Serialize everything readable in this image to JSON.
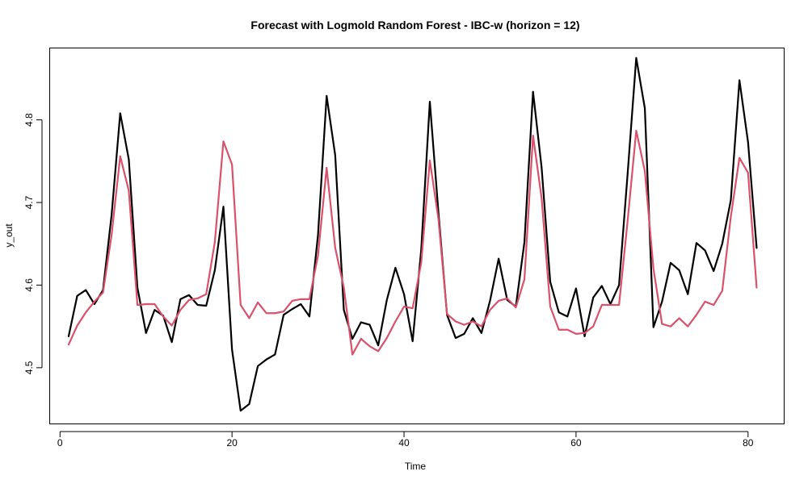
{
  "chart_data": {
    "type": "line",
    "title": "Forecast with Logmold Random Forest - IBC-w (horizon = 12)",
    "xlabel": "Time",
    "ylabel": "y_out",
    "xlim": [
      -1.2,
      84.2
    ],
    "ylim": [
      4.432,
      4.887
    ],
    "x_ticks": [
      0,
      20,
      40,
      60,
      80
    ],
    "y_ticks": [
      4.5,
      4.6,
      4.7,
      4.8
    ],
    "grid": false,
    "legend": "none",
    "x": [
      1,
      2,
      3,
      4,
      5,
      6,
      7,
      8,
      9,
      10,
      11,
      12,
      13,
      14,
      15,
      16,
      17,
      18,
      19,
      20,
      21,
      22,
      23,
      24,
      25,
      26,
      27,
      28,
      29,
      30,
      31,
      32,
      33,
      34,
      35,
      36,
      37,
      38,
      39,
      40,
      41,
      42,
      43,
      44,
      45,
      46,
      47,
      48,
      49,
      50,
      51,
      52,
      53,
      54,
      55,
      56,
      57,
      58,
      59,
      60,
      61,
      62,
      63,
      64,
      65,
      66,
      67,
      68,
      69,
      70,
      71,
      72,
      73,
      74,
      75,
      76,
      77,
      78,
      79,
      80,
      81
    ],
    "series": [
      {
        "color": "#000000",
        "values": [
          4.538,
          4.587,
          4.594,
          4.577,
          4.594,
          4.685,
          4.808,
          4.752,
          4.597,
          4.542,
          4.57,
          4.563,
          4.531,
          4.583,
          4.588,
          4.576,
          4.575,
          4.618,
          4.695,
          4.522,
          4.448,
          4.456,
          4.502,
          4.51,
          4.516,
          4.564,
          4.571,
          4.577,
          4.562,
          4.661,
          4.829,
          4.757,
          4.57,
          4.535,
          4.555,
          4.552,
          4.527,
          4.582,
          4.621,
          4.589,
          4.532,
          4.643,
          4.822,
          4.688,
          4.564,
          4.536,
          4.541,
          4.56,
          4.542,
          4.581,
          4.632,
          4.582,
          4.574,
          4.652,
          4.834,
          4.742,
          4.604,
          4.567,
          4.562,
          4.596,
          4.538,
          4.585,
          4.599,
          4.577,
          4.6,
          4.735,
          4.875,
          4.814,
          4.549,
          4.58,
          4.627,
          4.618,
          4.589,
          4.651,
          4.642,
          4.617,
          4.65,
          4.703,
          4.848,
          4.773,
          4.645
        ]
      },
      {
        "color": "#d9516a",
        "values": [
          4.528,
          4.551,
          4.567,
          4.58,
          4.591,
          4.661,
          4.756,
          4.714,
          4.576,
          4.577,
          4.577,
          4.562,
          4.551,
          4.57,
          4.582,
          4.584,
          4.589,
          4.652,
          4.774,
          4.746,
          4.576,
          4.56,
          4.579,
          4.566,
          4.566,
          4.568,
          4.581,
          4.583,
          4.583,
          4.636,
          4.742,
          4.645,
          4.597,
          4.516,
          4.535,
          4.526,
          4.52,
          4.536,
          4.556,
          4.574,
          4.572,
          4.627,
          4.751,
          4.68,
          4.565,
          4.556,
          4.552,
          4.556,
          4.55,
          4.57,
          4.581,
          4.584,
          4.573,
          4.607,
          4.781,
          4.705,
          4.574,
          4.546,
          4.546,
          4.541,
          4.542,
          4.55,
          4.576,
          4.576,
          4.576,
          4.678,
          4.787,
          4.738,
          4.62,
          4.553,
          4.55,
          4.56,
          4.55,
          4.564,
          4.58,
          4.576,
          4.593,
          4.683,
          4.754,
          4.736,
          4.597
        ]
      }
    ]
  }
}
